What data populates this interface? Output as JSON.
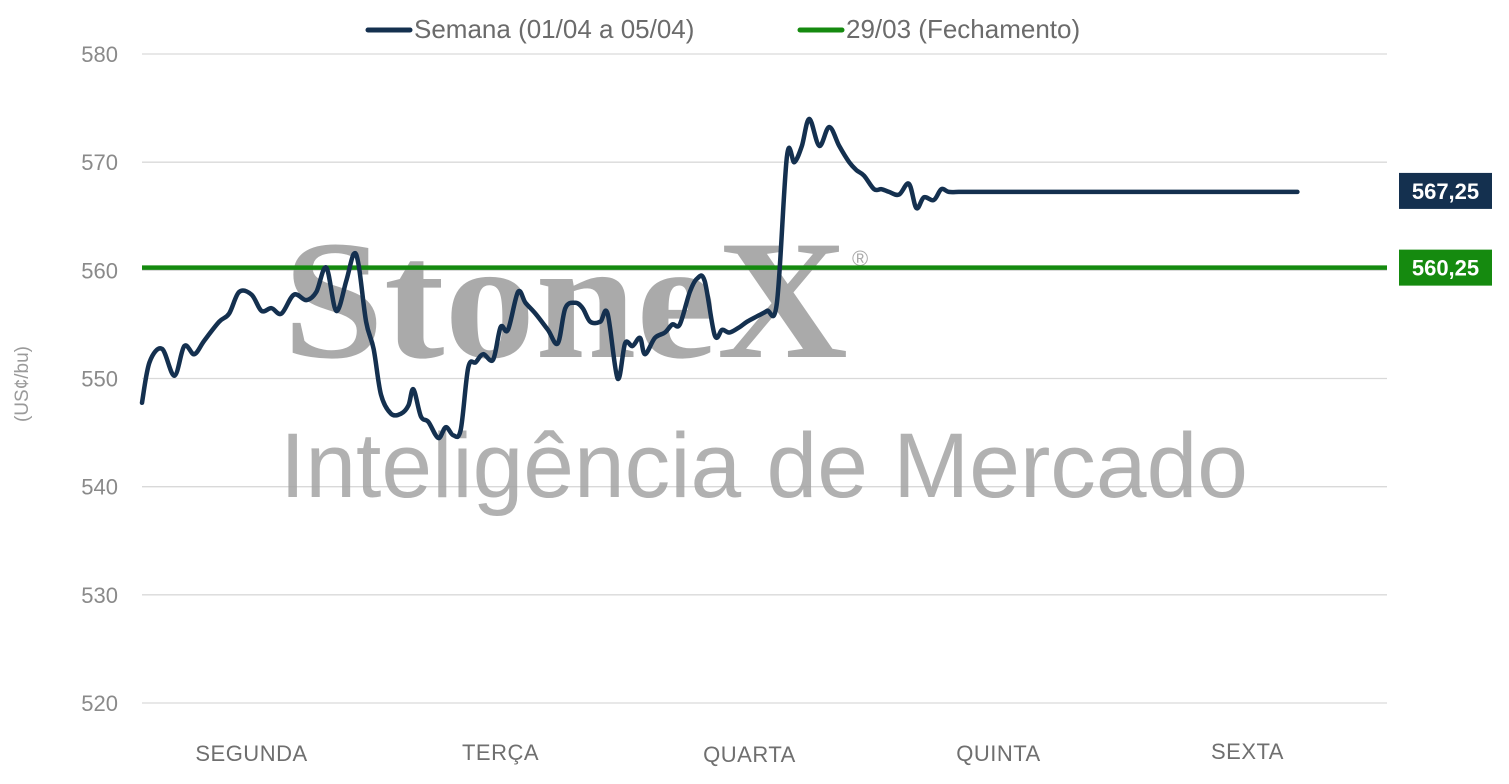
{
  "chart_data": {
    "type": "line",
    "title": "",
    "ylabel": "(US¢/bu)",
    "ylim": [
      520,
      580
    ],
    "yticks": [
      520,
      530,
      540,
      550,
      560,
      570,
      580
    ],
    "grid": true,
    "legend_placement": "top-center",
    "categories": [
      "SEGUNDA",
      "TERÇA",
      "QUARTA",
      "QUINTA",
      "SEXTA"
    ],
    "series": [
      {
        "name": "Semana (01/04 a 05/04)",
        "color": "#14304f",
        "x": [
          0.0,
          0.03,
          0.08,
          0.13,
          0.17,
          0.21,
          0.25,
          0.31,
          0.35,
          0.39,
          0.44,
          0.48,
          0.52,
          0.56,
          0.61,
          0.66,
          0.7,
          0.74,
          0.78,
          0.82,
          0.85,
          0.87,
          0.9,
          0.93,
          0.96,
          1.0,
          1.04,
          1.07,
          1.09,
          1.12,
          1.15,
          1.19,
          1.22,
          1.25,
          1.28,
          1.31,
          1.34,
          1.37,
          1.41,
          1.44,
          1.47,
          1.51,
          1.54,
          1.58,
          1.63,
          1.67,
          1.7,
          1.74,
          1.77,
          1.8,
          1.84,
          1.87,
          1.91,
          1.94,
          1.97,
          2.0,
          2.02,
          2.06,
          2.1,
          2.13,
          2.16,
          2.2,
          2.23,
          2.26,
          2.3,
          2.33,
          2.36,
          2.4,
          2.43,
          2.47,
          2.51,
          2.55,
          2.59,
          2.62,
          2.65,
          2.68,
          2.72,
          2.76,
          2.8,
          2.84,
          2.87,
          2.9,
          2.94,
          2.97,
          3.0,
          3.04,
          3.08,
          3.11,
          3.14,
          3.18,
          3.21,
          3.24,
          3.28,
          3.31,
          3.34,
          3.38,
          3.42,
          3.46,
          3.5,
          3.53,
          3.55,
          3.57,
          3.6,
          3.63,
          3.67,
          3.71,
          3.75,
          3.79,
          3.82,
          3.86,
          3.9,
          3.94,
          3.97,
          4.0,
          4.03,
          4.06,
          4.1,
          4.13,
          4.16,
          4.19,
          4.23,
          4.27,
          4.3,
          4.33,
          4.36,
          4.39,
          4.43,
          4.46,
          4.5,
          4.53,
          4.56,
          4.6,
          4.64
        ],
        "values": [
          547.75,
          551.5,
          552.75,
          550.25,
          553.0,
          552.25,
          553.5,
          555.25,
          556.0,
          558.0,
          557.75,
          556.25,
          556.5,
          556.0,
          557.75,
          557.25,
          558.0,
          560.25,
          556.25,
          559.0,
          561.5,
          560.5,
          555.25,
          552.75,
          548.5,
          546.75,
          546.75,
          547.5,
          549.0,
          546.5,
          546.0,
          544.5,
          545.5,
          544.75,
          545.25,
          551.0,
          551.5,
          552.25,
          551.75,
          554.75,
          554.5,
          558.0,
          557.0,
          556.0,
          554.5,
          553.25,
          556.5,
          557.0,
          556.5,
          555.25,
          555.25,
          556.0,
          550.0,
          553.25,
          553.0,
          553.75,
          552.25,
          553.75,
          554.25,
          555.0,
          555.0,
          558.0,
          559.25,
          559.0,
          554.0,
          554.5,
          554.25,
          554.75,
          555.25,
          555.75,
          556.25,
          557.0,
          570.5,
          570.0,
          571.5,
          574.0,
          571.5,
          573.25,
          571.5,
          570.0,
          569.25,
          568.75,
          567.5,
          567.5,
          567.25,
          567.0,
          568.0,
          565.75,
          566.75,
          566.5,
          567.5,
          567.25,
          567.25,
          567.25,
          567.25,
          567.25,
          567.25,
          567.25,
          567.25,
          567.25,
          567.25,
          567.25,
          567.25,
          567.25,
          567.25,
          567.25,
          567.25,
          567.25,
          567.25,
          567.25,
          567.25,
          567.25,
          567.25,
          567.25,
          567.25,
          567.25,
          567.25,
          567.25,
          567.25,
          567.25,
          567.25,
          567.25,
          567.25,
          567.25,
          567.25,
          567.25,
          567.25,
          567.25,
          567.25,
          567.25,
          567.25,
          567.25,
          567.25
        ],
        "last_value_label": "567,25"
      },
      {
        "name": "29/03 (Fechamento)",
        "color": "#158a0f",
        "value": 560.25,
        "last_value_label": "560,25"
      }
    ]
  },
  "watermark": {
    "brand": "StoneX",
    "registered": "®",
    "subtitle": "Inteligência de Mercado"
  }
}
